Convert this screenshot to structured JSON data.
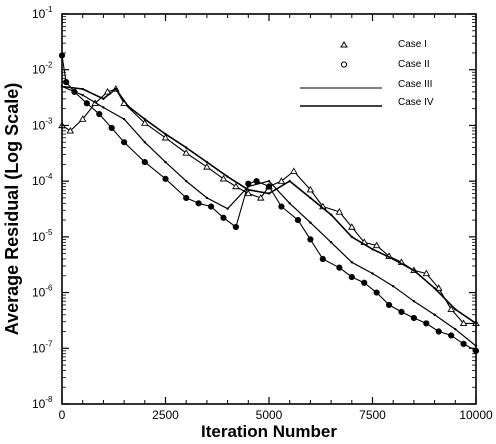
{
  "chart_data": {
    "type": "line",
    "xlabel": "Iteration Number",
    "ylabel": "Average Residual (Log Scale)",
    "xlim": [
      0,
      10000
    ],
    "ylim": [
      1e-08,
      0.1
    ],
    "yscale": "log",
    "grid": false,
    "legend_position": "top-right",
    "x_ticks": [
      {
        "value": 0,
        "label": "0"
      },
      {
        "value": 2500,
        "label": "2500"
      },
      {
        "value": 5000,
        "label": "5000"
      },
      {
        "value": 7500,
        "label": "7500"
      },
      {
        "value": 10000,
        "label": "10000"
      }
    ],
    "y_ticks": [
      {
        "value": 0.1,
        "base": "10",
        "exp": "-1"
      },
      {
        "value": 0.01,
        "base": "10",
        "exp": "-2"
      },
      {
        "value": 0.001,
        "base": "10",
        "exp": "-3"
      },
      {
        "value": 0.0001,
        "base": "10",
        "exp": "-4"
      },
      {
        "value": 1e-05,
        "base": "10",
        "exp": "-5"
      },
      {
        "value": 1e-06,
        "base": "10",
        "exp": "-6"
      },
      {
        "value": 1e-07,
        "base": "10",
        "exp": "-7"
      },
      {
        "value": 1e-08,
        "base": "10",
        "exp": "-8"
      }
    ],
    "series": [
      {
        "name": "Case I",
        "marker": "triangle",
        "x": [
          0,
          200,
          500,
          800,
          1100,
          1300,
          1500,
          2000,
          2500,
          3000,
          3500,
          3900,
          4200,
          4500,
          4800,
          5000,
          5300,
          5600,
          6000,
          6300,
          6700,
          7000,
          7300,
          7600,
          7900,
          8200,
          8500,
          8800,
          9100,
          9400,
          9700,
          10000
        ],
        "y": [
          0.001,
          0.0008,
          0.0013,
          0.0025,
          0.004,
          0.0045,
          0.0025,
          0.0011,
          0.0006,
          0.00032,
          0.00018,
          0.00011,
          8e-05,
          6e-05,
          5e-05,
          8e-05,
          0.0001,
          0.00015,
          7e-05,
          3.5e-05,
          2.8e-05,
          1.5e-05,
          8e-06,
          7e-06,
          4.5e-06,
          3.5e-06,
          2.5e-06,
          2.2e-06,
          1.2e-06,
          5e-07,
          2.8e-07,
          2.8e-07
        ]
      },
      {
        "name": "Case II",
        "marker": "circle",
        "x": [
          0,
          100,
          300,
          600,
          900,
          1200,
          1500,
          2000,
          2500,
          3000,
          3300,
          3600,
          3900,
          4200,
          4500,
          4700,
          5000,
          5300,
          5700,
          6000,
          6300,
          6700,
          7000,
          7300,
          7600,
          7900,
          8200,
          8500,
          8800,
          9100,
          9400,
          9700,
          10000
        ],
        "y": [
          0.018,
          0.006,
          0.004,
          0.0025,
          0.0016,
          0.0009,
          0.0005,
          0.00022,
          0.00011,
          5e-05,
          4e-05,
          3.5e-05,
          2.2e-05,
          1.5e-05,
          9e-05,
          0.0001,
          8e-05,
          3.5e-05,
          2e-05,
          9e-06,
          4e-06,
          2.8e-06,
          1.9e-06,
          1.5e-06,
          1e-06,
          6e-07,
          4.5e-07,
          3.5e-07,
          2.8e-07,
          2e-07,
          1.7e-07,
          1.2e-07,
          9e-08
        ]
      },
      {
        "name": "Case III",
        "marker": "line",
        "x": [
          0,
          500,
          1000,
          1500,
          2000,
          2500,
          3000,
          3500,
          4000,
          4500,
          5000,
          5500,
          6000,
          6500,
          7000,
          7500,
          8000,
          8500,
          9000,
          9500,
          10000
        ],
        "y": [
          0.005,
          0.0035,
          0.0021,
          0.0013,
          0.0005,
          0.00022,
          0.0001,
          5e-05,
          3.2e-05,
          8e-05,
          0.0001,
          4e-05,
          1.8e-05,
          8e-06,
          3.5e-06,
          2.2e-06,
          1.3e-06,
          7e-07,
          4e-07,
          2.2e-07,
          1.1e-07
        ]
      },
      {
        "name": "Case IV",
        "marker": "line",
        "x": [
          0,
          500,
          1000,
          1300,
          1600,
          2000,
          2500,
          3000,
          3500,
          4000,
          4500,
          5000,
          5500,
          6000,
          6500,
          7000,
          7500,
          8000,
          8500,
          9000,
          9500,
          10000
        ],
        "y": [
          0.005,
          0.0045,
          0.003,
          0.0045,
          0.0022,
          0.0013,
          0.0007,
          0.0004,
          0.00022,
          0.00012,
          7e-05,
          6e-05,
          0.0001,
          5e-05,
          2.5e-05,
          1e-05,
          6e-06,
          4e-06,
          2.5e-06,
          1.2e-06,
          5e-07,
          2.8e-07
        ]
      }
    ]
  }
}
